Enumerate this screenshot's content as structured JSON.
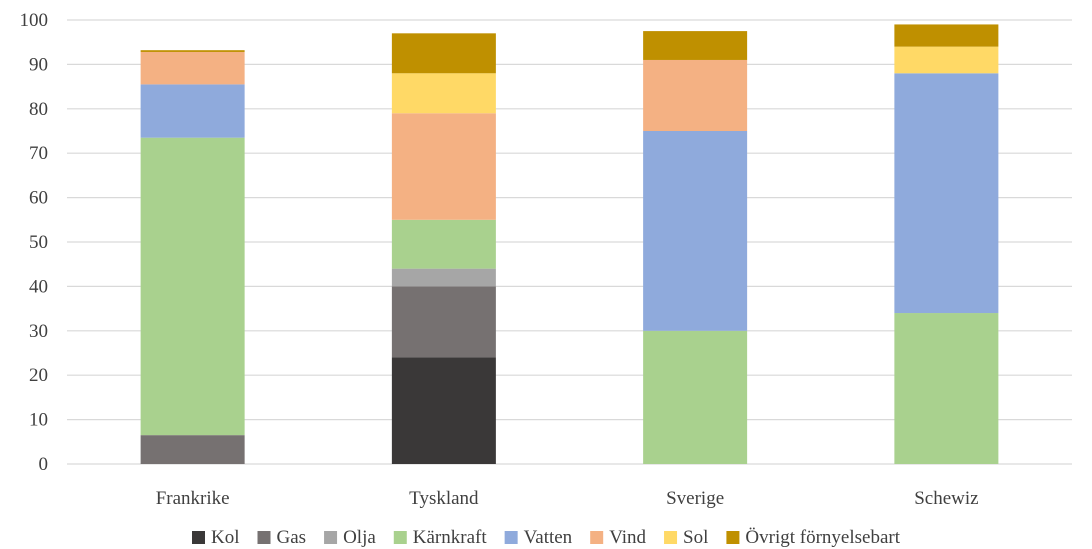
{
  "chart_data": {
    "type": "bar",
    "stacked": true,
    "title": "",
    "xlabel": "",
    "ylabel": "",
    "ylim": [
      0,
      100
    ],
    "yticks": [
      0,
      10,
      20,
      30,
      40,
      50,
      60,
      70,
      80,
      90,
      100
    ],
    "grid": true,
    "legend": "bottom",
    "categories": [
      "Frankrike",
      "Tyskland",
      "Sverige",
      "Schewiz"
    ],
    "series": [
      {
        "name": "Kol",
        "color": "#3a3838",
        "values": [
          0,
          24,
          0,
          0
        ]
      },
      {
        "name": "Gas",
        "color": "#767171",
        "values": [
          6.5,
          16,
          0,
          0
        ]
      },
      {
        "name": "Olja",
        "color": "#a6a6a6",
        "values": [
          0,
          4,
          0,
          0
        ]
      },
      {
        "name": "Kärnkraft",
        "color": "#a9d18e",
        "values": [
          67,
          11,
          30,
          34
        ]
      },
      {
        "name": "Vatten",
        "color": "#8faadc",
        "values": [
          12,
          0,
          45,
          54
        ]
      },
      {
        "name": "Vind",
        "color": "#f4b183",
        "values": [
          7.3,
          24,
          16,
          0
        ]
      },
      {
        "name": "Sol",
        "color": "#ffd966",
        "values": [
          0,
          9,
          0,
          6
        ]
      },
      {
        "name": "Övrigt förnyelsebart",
        "color": "#bf9000",
        "values": [
          0.4,
          9,
          6.5,
          5
        ]
      }
    ]
  }
}
